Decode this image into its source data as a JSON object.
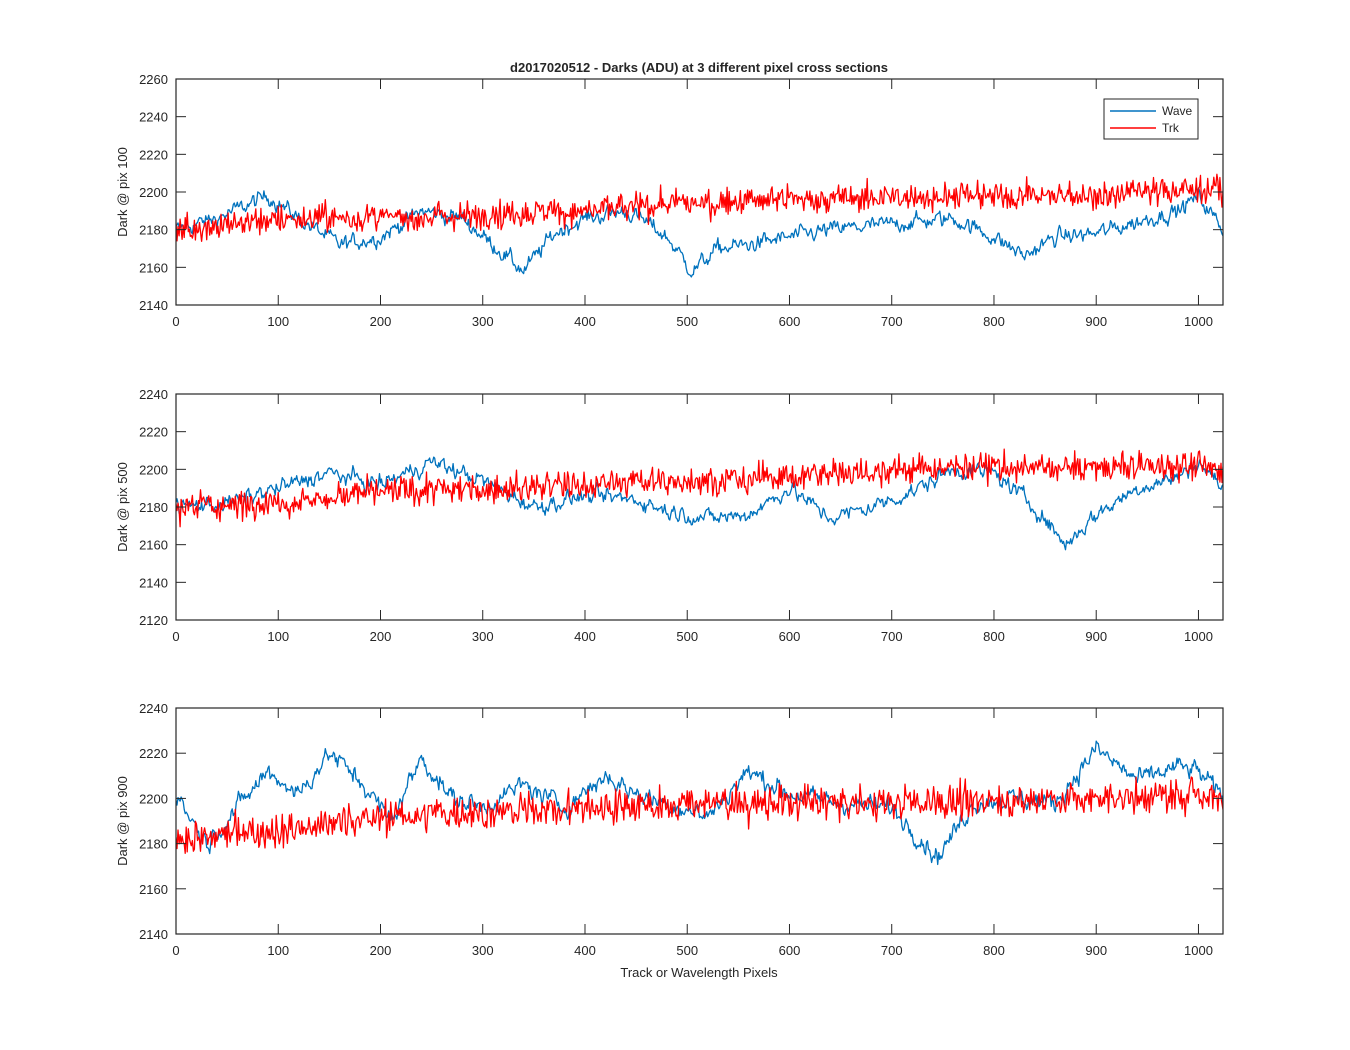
{
  "figure": {
    "title": "d2017020512 - Darks (ADU) at 3 different pixel cross sections",
    "xlabel": "Track or Wavelength Pixels"
  },
  "legend": {
    "placement": "top-right of first panel",
    "entries": [
      {
        "name": "Wave",
        "color": "#0072BD"
      },
      {
        "name": "Trk",
        "color": "#FF0000"
      }
    ]
  },
  "chart_data": [
    {
      "type": "line",
      "ylabel": "Dark @ pix 100",
      "xlim": [
        0,
        1024
      ],
      "ylim": [
        2140,
        2260
      ],
      "xticks": [
        0,
        100,
        200,
        300,
        400,
        500,
        600,
        700,
        800,
        900,
        1000
      ],
      "yticks": [
        2140,
        2160,
        2180,
        2200,
        2220,
        2240,
        2260
      ],
      "noise_estimated": true,
      "series": [
        {
          "name": "Wave",
          "color": "#0072BD",
          "noise": 5,
          "x": [
            0,
            40,
            90,
            120,
            160,
            200,
            240,
            280,
            310,
            340,
            370,
            400,
            440,
            460,
            480,
            505,
            530,
            560,
            600,
            640,
            680,
            720,
            760,
            800,
            830,
            860,
            900,
            940,
            980,
            1000,
            1024
          ],
          "y": [
            2180,
            2186,
            2198,
            2186,
            2172,
            2176,
            2190,
            2186,
            2172,
            2158,
            2178,
            2186,
            2190,
            2184,
            2176,
            2158,
            2170,
            2172,
            2176,
            2180,
            2182,
            2184,
            2186,
            2176,
            2166,
            2176,
            2178,
            2184,
            2190,
            2198,
            2180
          ]
        },
        {
          "name": "Trk",
          "color": "#FF0000",
          "noise": 10,
          "x": [
            0,
            100,
            200,
            300,
            400,
            500,
            600,
            700,
            800,
            900,
            1000,
            1024
          ],
          "y": [
            2180,
            2186,
            2186,
            2188,
            2190,
            2194,
            2196,
            2197,
            2198,
            2198,
            2202,
            2200
          ]
        }
      ]
    },
    {
      "type": "line",
      "ylabel": "Dark @ pix 500",
      "xlim": [
        0,
        1024
      ],
      "ylim": [
        2120,
        2240
      ],
      "xticks": [
        0,
        100,
        200,
        300,
        400,
        500,
        600,
        700,
        800,
        900,
        1000
      ],
      "yticks": [
        2120,
        2140,
        2160,
        2180,
        2200,
        2220,
        2240
      ],
      "noise_estimated": true,
      "series": [
        {
          "name": "Wave",
          "color": "#0072BD",
          "noise": 5,
          "x": [
            0,
            50,
            100,
            150,
            200,
            250,
            300,
            350,
            400,
            450,
            480,
            520,
            560,
            600,
            640,
            680,
            720,
            760,
            800,
            840,
            870,
            900,
            940,
            980,
            1000,
            1024
          ],
          "y": [
            2180,
            2182,
            2190,
            2198,
            2192,
            2204,
            2194,
            2180,
            2186,
            2184,
            2178,
            2174,
            2176,
            2190,
            2174,
            2180,
            2188,
            2200,
            2198,
            2180,
            2160,
            2176,
            2190,
            2196,
            2204,
            2190
          ]
        },
        {
          "name": "Trk",
          "color": "#FF0000",
          "noise": 10,
          "x": [
            0,
            100,
            200,
            300,
            400,
            500,
            600,
            700,
            800,
            900,
            1000,
            1024
          ],
          "y": [
            2180,
            2182,
            2188,
            2190,
            2192,
            2194,
            2196,
            2200,
            2201,
            2201,
            2202,
            2198
          ]
        }
      ]
    },
    {
      "type": "line",
      "ylabel": "Dark @ pix 900",
      "xlim": [
        0,
        1024
      ],
      "ylim": [
        2140,
        2240
      ],
      "xticks": [
        0,
        100,
        200,
        300,
        400,
        500,
        600,
        700,
        800,
        900,
        1000
      ],
      "yticks": [
        2140,
        2160,
        2180,
        2200,
        2220,
        2240
      ],
      "noise_estimated": true,
      "series": [
        {
          "name": "Wave",
          "color": "#0072BD",
          "noise": 5,
          "x": [
            0,
            30,
            60,
            90,
            120,
            150,
            180,
            210,
            240,
            270,
            300,
            340,
            380,
            420,
            450,
            480,
            520,
            560,
            600,
            650,
            700,
            745,
            780,
            820,
            860,
            900,
            940,
            980,
            1000,
            1024
          ],
          "y": [
            2202,
            2180,
            2196,
            2212,
            2202,
            2220,
            2208,
            2190,
            2218,
            2200,
            2196,
            2206,
            2196,
            2210,
            2202,
            2198,
            2192,
            2212,
            2202,
            2198,
            2196,
            2174,
            2198,
            2200,
            2198,
            2222,
            2208,
            2214,
            2212,
            2200
          ]
        },
        {
          "name": "Trk",
          "color": "#FF0000",
          "noise": 10,
          "x": [
            0,
            100,
            200,
            300,
            400,
            500,
            600,
            700,
            800,
            900,
            1000,
            1024
          ],
          "y": [
            2182,
            2186,
            2192,
            2194,
            2196,
            2198,
            2198,
            2198,
            2199,
            2200,
            2202,
            2200
          ]
        }
      ]
    }
  ]
}
